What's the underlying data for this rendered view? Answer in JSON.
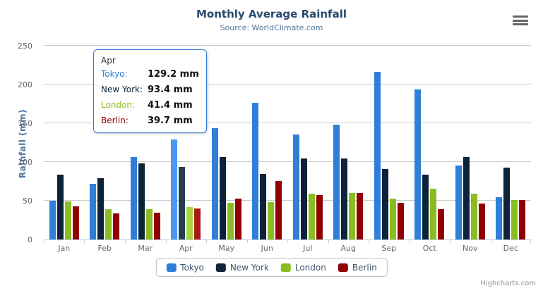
{
  "chart": {
    "title": "Monthly Average Rainfall",
    "subtitle": "Source: WorldClimate.com",
    "credits": "Highcharts.com"
  },
  "chart_data": {
    "type": "bar",
    "title": "Monthly Average Rainfall",
    "subtitle": "Source: WorldClimate.com",
    "xlabel": "",
    "ylabel": "Rainfall (mm)",
    "ylim": [
      0,
      250
    ],
    "yticks": [
      0,
      50,
      100,
      150,
      200,
      250
    ],
    "grid": true,
    "legend_position": "bottom",
    "categories": [
      "Jan",
      "Feb",
      "Mar",
      "Apr",
      "May",
      "Jun",
      "Jul",
      "Aug",
      "Sep",
      "Oct",
      "Nov",
      "Dec"
    ],
    "series": [
      {
        "name": "Tokyo",
        "color": "#2f7ed8",
        "hover_color": "#4998f2",
        "values": [
          49.9,
          71.5,
          106.4,
          129.2,
          144.0,
          176.0,
          135.6,
          148.5,
          216.4,
          194.1,
          95.6,
          54.4
        ]
      },
      {
        "name": "New York",
        "color": "#0d233a",
        "hover_color": "#273d54",
        "values": [
          83.6,
          78.8,
          98.5,
          93.4,
          106.0,
          84.5,
          105.0,
          104.3,
          91.2,
          83.5,
          106.6,
          92.3
        ]
      },
      {
        "name": "London",
        "color": "#8bbc21",
        "hover_color": "#a5d63b",
        "values": [
          48.9,
          38.8,
          39.3,
          41.4,
          47.0,
          48.3,
          59.0,
          59.6,
          52.4,
          65.2,
          59.3,
          51.2
        ]
      },
      {
        "name": "Berlin",
        "color": "#910000",
        "hover_color": "#ab1a1a",
        "values": [
          42.4,
          33.2,
          34.5,
          39.7,
          52.6,
          75.5,
          57.4,
          60.4,
          47.6,
          39.1,
          46.8,
          51.1
        ]
      }
    ],
    "hovered_category": "Apr",
    "hovered_category_index": 3
  },
  "tooltip": {
    "header": "Apr",
    "border_color": "#2f7ed8",
    "rows": [
      {
        "label": "Tokyo:",
        "value": "129.2 mm",
        "color": "#2f7ed8"
      },
      {
        "label": "New York:",
        "value": "93.4 mm",
        "color": "#0d233a"
      },
      {
        "label": "London:",
        "value": "41.4 mm",
        "color": "#8bbc21"
      },
      {
        "label": "Berlin:",
        "value": "39.7 mm",
        "color": "#910000"
      }
    ]
  },
  "colors": {
    "title": "#274b6d",
    "subtitle": "#4d759e",
    "axis_title": "#4d759e",
    "tick_label": "#666666",
    "gridline": "#cccccc",
    "axis_line": "#c0d0e0",
    "legend_text": "#3e576f",
    "credits": "#909090",
    "export_icon": "#666666"
  }
}
